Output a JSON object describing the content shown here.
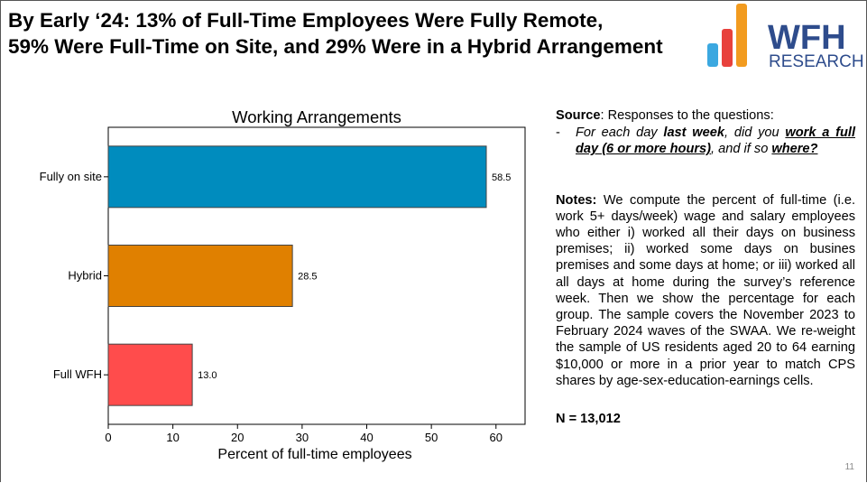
{
  "slide": {
    "title_line1": "By Early ‘24: 13% of Full-Time Employees Were Fully Remote,",
    "title_line2": "59% Were Full-Time on Site, and 29% Were in a Hybrid Arrangement",
    "page_number": "11"
  },
  "logo": {
    "name": "WFH",
    "subtitle": "RESEARCH",
    "color": "#2E4C8C",
    "bar_colors": [
      "#3BA8E0",
      "#E8413C",
      "#F29B1F"
    ]
  },
  "chart_data": {
    "type": "bar",
    "orientation": "horizontal",
    "title": "Working Arrangements",
    "xlabel": "Percent of full-time employees",
    "ylabel": "",
    "categories": [
      "Fully on site",
      "Hybrid",
      "Full WFH"
    ],
    "values": [
      58.5,
      28.5,
      13.0
    ],
    "value_labels": [
      "58.5",
      "28.5",
      "13.0"
    ],
    "colors": [
      "#008CBE",
      "#E08000",
      "#FF4C4C"
    ],
    "xlim": [
      0,
      64.5
    ],
    "xticks": [
      0,
      10,
      20,
      30,
      40,
      50,
      60
    ]
  },
  "notes_panel": {
    "source_label": "Source",
    "source_text": ": Responses to the questions:",
    "dash": "-",
    "q1": "For each day ",
    "q2": "last week",
    "q3": ", did you ",
    "q4": "work a full day (6 or more hours)",
    "q5": ", and if so ",
    "q6": "where?",
    "notes_label": "Notes:",
    "notes_text": " We compute the percent of full-time (i.e. work 5+ days/week) wage and salary employees who either i) worked all their days on business premises; ii) worked some days on busines premises and some days at home; or iii) worked all all days at home during the survey’s reference week. Then we show the percentage for each group. The sample covers the November 2023 to February 2024 waves of the SWAA. We re-weight the sample of US residents aged 20 to 64 earning $10,000 or more in a prior year to match CPS shares by age-sex-education-earnings cells.",
    "n_text": "N = 13,012"
  }
}
